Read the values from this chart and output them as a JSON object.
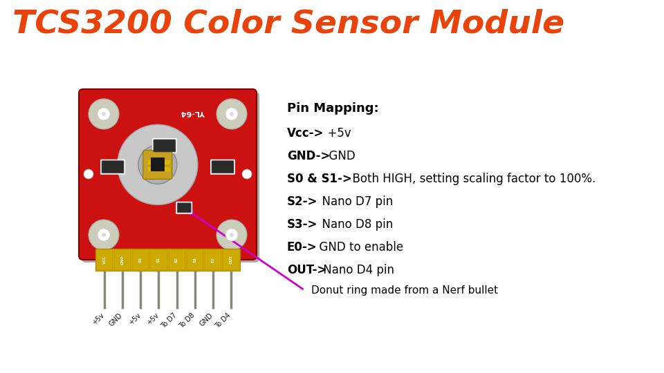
{
  "title": "TCS3200 Color Sensor Module",
  "title_color": "#E8430A",
  "title_fontsize": 34,
  "bg_color": "#FFFFFF",
  "pin_mapping_header": "Pin Mapping:",
  "pin_lines": [
    {
      "bold": "Vcc->",
      "normal": "  +5v"
    },
    {
      "bold": "GND->",
      "normal": "  GND"
    },
    {
      "bold": "S0 & S1->",
      "normal": "  Both HIGH, setting scaling factor to 100%."
    },
    {
      "bold": "S2->",
      "normal": "  Nano D7 pin"
    },
    {
      "bold": "S3->",
      "normal": "  Nano D8 pin"
    },
    {
      "bold": "E0->",
      "normal": "  GND to enable"
    },
    {
      "bold": "OUT->",
      "normal": " Nano D4 pin"
    }
  ],
  "annotation_text": "Donut ring made from a Nerf bullet",
  "pin_labels": [
    "+5v",
    "GND",
    "+5v",
    "+5v",
    "To D7",
    "To D8",
    "GND",
    "To D4"
  ],
  "board_color": "#CC1111",
  "arrow_color": "#CC00CC",
  "pin_connector_labels": [
    "VCC",
    "GND",
    "S0",
    "S1",
    "S2",
    "S3",
    "E0",
    "OUT"
  ]
}
